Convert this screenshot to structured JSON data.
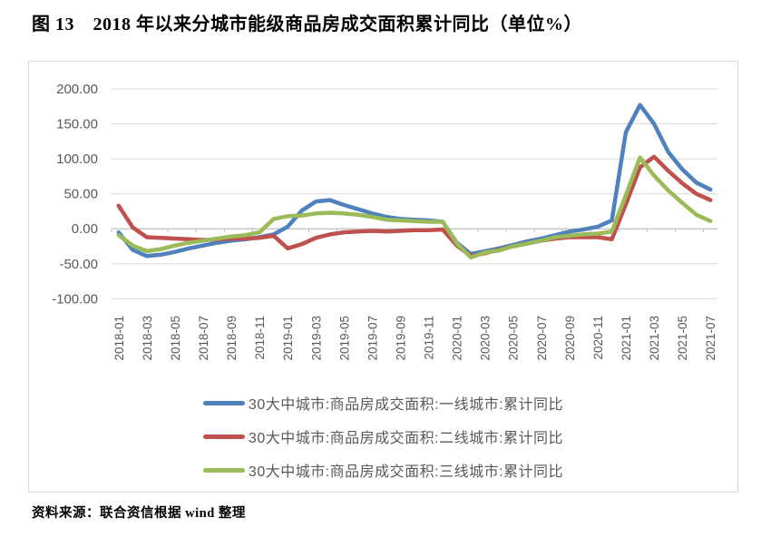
{
  "page": {
    "figure_title": "图 13　2018 年以来分城市能级商品房成交面积累计同比（单位%）",
    "source_note": "资料来源：联合资信根据 wind 整理"
  },
  "chart_data": {
    "type": "line",
    "title": "2018 年以来分城市能级商品房成交面积累计同比",
    "unit": "%",
    "grid": true,
    "legend_position": "bottom",
    "ylim": [
      -100,
      200
    ],
    "y_ticks": [
      200,
      150,
      100,
      50,
      0,
      -50,
      -100
    ],
    "y_tick_decimals": 2,
    "x_label_step": 2,
    "x_label_rotation": -90,
    "x": [
      "2018-01",
      "2018-02",
      "2018-03",
      "2018-04",
      "2018-05",
      "2018-06",
      "2018-07",
      "2018-08",
      "2018-09",
      "2018-10",
      "2018-11",
      "2018-12",
      "2019-01",
      "2019-02",
      "2019-03",
      "2019-04",
      "2019-05",
      "2019-06",
      "2019-07",
      "2019-08",
      "2019-09",
      "2019-10",
      "2019-11",
      "2019-12",
      "2020-01",
      "2020-02",
      "2020-03",
      "2020-04",
      "2020-05",
      "2020-06",
      "2020-07",
      "2020-08",
      "2020-09",
      "2020-10",
      "2020-11",
      "2020-12",
      "2021-01",
      "2021-02",
      "2021-03",
      "2021-04",
      "2021-05",
      "2021-06",
      "2021-07"
    ],
    "series": [
      {
        "name": "30大中城市:商品房成交面积:一线城市:累计同比",
        "color": "#4F81BD",
        "values": [
          -5,
          -30,
          -39,
          -37,
          -33,
          -28,
          -24,
          -20,
          -17,
          -15,
          -12,
          -8,
          3,
          26,
          39,
          41,
          34,
          28,
          22,
          17,
          14,
          13,
          12,
          10,
          -20,
          -36,
          -32,
          -28,
          -23,
          -18,
          -14,
          -9,
          -4,
          -1,
          3,
          12,
          138,
          177,
          150,
          110,
          85,
          66,
          56
        ]
      },
      {
        "name": "30大中城市:商品房成交面积:二线城市:累计同比",
        "color": "#C0504D",
        "values": [
          33,
          2,
          -12,
          -13,
          -14,
          -15,
          -16,
          -15,
          -14,
          -14,
          -13,
          -10,
          -28,
          -22,
          -13,
          -8,
          -5,
          -4,
          -3,
          -4,
          -3,
          -2,
          -2,
          -1,
          -24,
          -39,
          -35,
          -30,
          -25,
          -21,
          -17,
          -14,
          -12,
          -12,
          -12,
          -15,
          35,
          88,
          103,
          83,
          65,
          50,
          41
        ]
      },
      {
        "name": "30大中城市:商品房成交面积:三线城市:累计同比",
        "color": "#9BBB59",
        "values": [
          -9,
          -24,
          -32,
          -29,
          -24,
          -20,
          -17,
          -14,
          -11,
          -9,
          -5,
          14,
          18,
          19,
          22,
          23,
          22,
          20,
          17,
          13,
          12,
          11,
          10,
          10,
          -21,
          -41,
          -34,
          -31,
          -25,
          -21,
          -17,
          -12,
          -10,
          -8,
          -7,
          -4,
          48,
          102,
          76,
          55,
          37,
          20,
          11
        ]
      }
    ],
    "axis_colors": {
      "gridline": "#D9D9D9",
      "axis_line": "#BFBFBF",
      "tick": "#BFBFBF",
      "label": "#595959"
    }
  }
}
